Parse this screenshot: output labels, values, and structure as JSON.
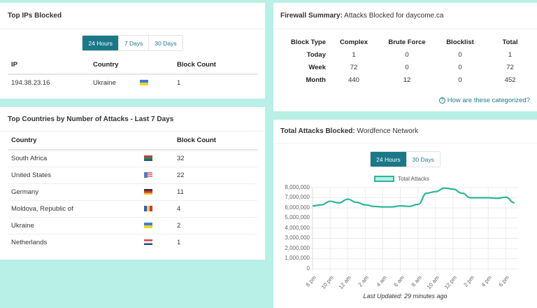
{
  "top_ips": {
    "title": "Top IPs Blocked",
    "tabs": [
      {
        "label": "24 Hours",
        "active": true
      },
      {
        "label": "7 Days",
        "active": false
      },
      {
        "label": "30 Days",
        "active": false
      }
    ],
    "columns": [
      "IP",
      "Country",
      "Block Count"
    ],
    "rows": [
      {
        "ip": "194.38.23.16",
        "country": "Ukraine",
        "flag": "flag-ukraine-icon",
        "count": "1"
      }
    ]
  },
  "top_countries": {
    "title": "Top Countries by Number of Attacks - Last 7 Days",
    "columns": [
      "Country",
      "Block Count"
    ],
    "rows": [
      {
        "country": "South Africa",
        "flag": "flag-south-africa-icon",
        "count": "32"
      },
      {
        "country": "United States",
        "flag": "flag-united-states-icon",
        "count": "22"
      },
      {
        "country": "Germany",
        "flag": "flag-germany-icon",
        "count": "11"
      },
      {
        "country": "Moldova, Republic of",
        "flag": "flag-moldova-icon",
        "count": "4"
      },
      {
        "country": "Ukraine",
        "flag": "flag-ukraine-icon",
        "count": "2"
      },
      {
        "country": "Netherlands",
        "flag": "flag-netherlands-icon",
        "count": "1"
      }
    ]
  },
  "firewall_summary": {
    "title_bold": "Firewall Summary:",
    "title_rest": " Attacks Blocked for daycome.ca",
    "columns": [
      "Block Type",
      "Complex",
      "Brute Force",
      "Blocklist",
      "Total"
    ],
    "rows": [
      {
        "label": "Today",
        "complex": "1",
        "brute_force": "0",
        "blocklist": "0",
        "total": "1"
      },
      {
        "label": "Week",
        "complex": "72",
        "brute_force": "0",
        "blocklist": "0",
        "total": "72"
      },
      {
        "label": "Month",
        "complex": "440",
        "brute_force": "12",
        "blocklist": "0",
        "total": "452"
      }
    ],
    "help_icon": "question-circle-icon",
    "help_link": "How are these categorized?"
  },
  "total_attacks": {
    "title_bold": "Total Attacks Blocked:",
    "title_rest": " Wordfence Network",
    "tabs": [
      {
        "label": "24 Hours",
        "active": true
      },
      {
        "label": "30 Days",
        "active": false
      }
    ],
    "last_updated": "Last Updated: 29 minutes ago"
  },
  "colors": {
    "background": "#b8efe6",
    "accent": "#1a7889",
    "line": "#2bb59a",
    "legend_fill": "#b8efe6"
  },
  "chart_data": {
    "type": "line",
    "title": "",
    "legend": [
      "Total Attacks"
    ],
    "legend_position": "top",
    "xlabel": "",
    "ylabel": "",
    "ylim": [
      0,
      8000000
    ],
    "yticks": [
      "8,000,000",
      "7,000,000",
      "6,000,000",
      "5,000,000",
      "4,000,000",
      "3,000,000",
      "2,000,000",
      "1,000,000",
      "0"
    ],
    "xticks": [
      "8 pm",
      "10 pm",
      "12 am",
      "2 am",
      "4 am",
      "6 am",
      "8 am",
      "10 am",
      "12 pm",
      "2 pm",
      "4 pm",
      "6 pm"
    ],
    "grid": true,
    "x": [
      "8 pm",
      "9 pm",
      "10 pm",
      "11 pm",
      "12 am",
      "1 am",
      "2 am",
      "3 am",
      "4 am",
      "5 am",
      "6 am",
      "7 am",
      "8 am",
      "9 am",
      "10 am",
      "11 am",
      "12 pm",
      "1 pm",
      "2 pm",
      "3 pm",
      "4 pm",
      "5 pm",
      "6 pm",
      "7 pm"
    ],
    "series": [
      {
        "name": "Total Attacks",
        "values": [
          6200000,
          6300000,
          6650000,
          6500000,
          6850000,
          6550000,
          6300000,
          6150000,
          6100000,
          6100000,
          6200000,
          6150000,
          6350000,
          7450000,
          7600000,
          7950000,
          7850000,
          7450000,
          7000000,
          7000000,
          7000000,
          6950000,
          7050000,
          6500000
        ]
      }
    ]
  }
}
